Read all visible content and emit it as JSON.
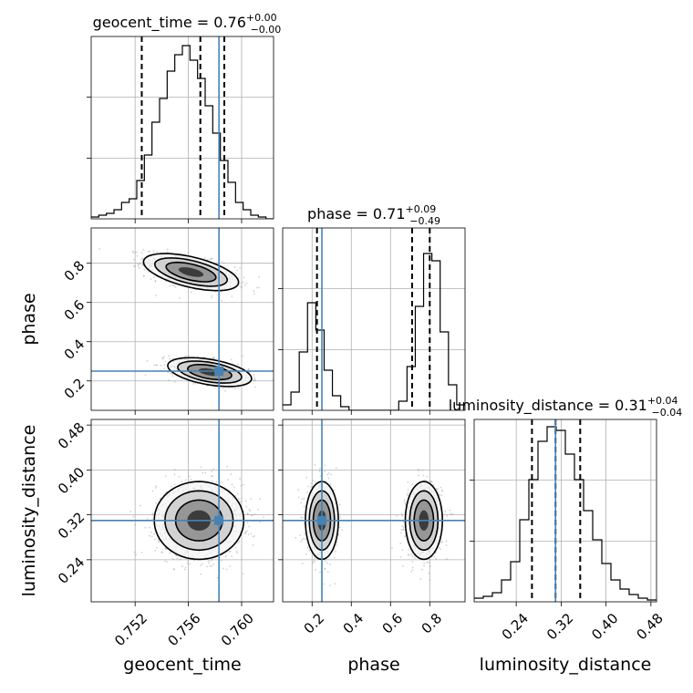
{
  "chart_data": {
    "type": "corner",
    "parameters": [
      "geocent_time",
      "phase",
      "luminosity_distance"
    ],
    "truths": {
      "geocent_time": 0.7583,
      "phase": 0.25,
      "luminosity_distance": 0.31
    },
    "titles": [
      {
        "param": "geocent_time",
        "label": "geocent_time = 0.76",
        "plus": "+0.00",
        "minus": "−0.00"
      },
      {
        "param": "phase",
        "label": "phase = 0.71",
        "plus": "+0.09",
        "minus": "−0.49"
      },
      {
        "param": "luminosity_distance",
        "label": "luminosity_distance = 0.31",
        "plus": "+0.04",
        "minus": "−0.04"
      }
    ],
    "axes": {
      "geocent_time": {
        "label": "geocent_time",
        "range": [
          0.7487,
          0.7624
        ],
        "ticks": [
          0.752,
          0.756,
          0.76
        ],
        "tick_labels": [
          "0.752",
          "0.756",
          "0.760"
        ]
      },
      "phase": {
        "label": "phase",
        "range": [
          0.05,
          0.98
        ],
        "ticks": [
          0.2,
          0.4,
          0.6,
          0.8
        ],
        "tick_labels": [
          "0.2",
          "0.4",
          "0.6",
          "0.8"
        ]
      },
      "luminosity_distance": {
        "label": "luminosity_distance",
        "range": [
          0.165,
          0.49
        ],
        "ticks": [
          0.24,
          0.32,
          0.4,
          0.48
        ],
        "tick_labels": [
          "0.24",
          "0.32",
          "0.40",
          "0.48"
        ]
      }
    },
    "histograms": {
      "geocent_time": {
        "bins": [
          0.7487,
          0.7624
        ],
        "counts": [
          1,
          2,
          3,
          5,
          9,
          11,
          21,
          35,
          53,
          66,
          81,
          90,
          95,
          87,
          77,
          62,
          47,
          32,
          20,
          9,
          5,
          2,
          1,
          0
        ],
        "quantiles": [
          0.7525,
          0.7569,
          0.7587
        ]
      },
      "phase": {
        "bins": [
          0.05,
          0.98
        ],
        "counts": [
          3,
          10,
          32,
          59,
          44,
          22,
          8,
          2,
          0,
          0,
          0,
          0,
          0,
          0,
          5,
          24,
          57,
          86,
          82,
          43,
          14,
          3
        ],
        "quantiles": [
          0.225,
          0.71,
          0.8
        ]
      },
      "luminosity_distance": {
        "bins": [
          0.165,
          0.49
        ],
        "counts": [
          2,
          3,
          5,
          12,
          22,
          45,
          67,
          88,
          96,
          94,
          81,
          67,
          50,
          34,
          21,
          12,
          7,
          4,
          2,
          1
        ],
        "quantiles": [
          0.268,
          0.31,
          0.354
        ]
      }
    },
    "histogram_ylim": [
      0,
      100
    ],
    "histogram_yticks": [
      33.3,
      66.7
    ],
    "histogram_tick_labels_visible": false,
    "grid": true,
    "colors": {
      "truth": "#4682b4",
      "lines": "#000000",
      "grid": "#b0b0b0",
      "scatter": "#9a9a9a"
    },
    "density_2d": {
      "phase_vs_geocent_time": {
        "modes": [
          {
            "center": [
              0.7562,
              0.755
            ],
            "spread": [
              0.0017,
              0.045
            ],
            "correlation": -0.55,
            "weight": 0.62
          },
          {
            "center": [
              0.7576,
              0.245
            ],
            "spread": [
              0.0015,
              0.035
            ],
            "correlation": -0.45,
            "weight": 0.38
          }
        ]
      },
      "luminosity_distance_vs_geocent_time": {
        "modes": [
          {
            "center": [
              0.7568,
              0.31
            ],
            "spread": [
              0.0016,
              0.033
            ],
            "correlation": 0.0,
            "weight": 1.0
          }
        ]
      },
      "luminosity_distance_vs_phase": {
        "modes": [
          {
            "center": [
              0.25,
              0.31
            ],
            "spread": [
              0.04,
              0.033
            ],
            "correlation": 0.0,
            "weight": 0.38
          },
          {
            "center": [
              0.77,
              0.31
            ],
            "spread": [
              0.045,
              0.033
            ],
            "correlation": 0.0,
            "weight": 0.62
          }
        ]
      }
    }
  }
}
